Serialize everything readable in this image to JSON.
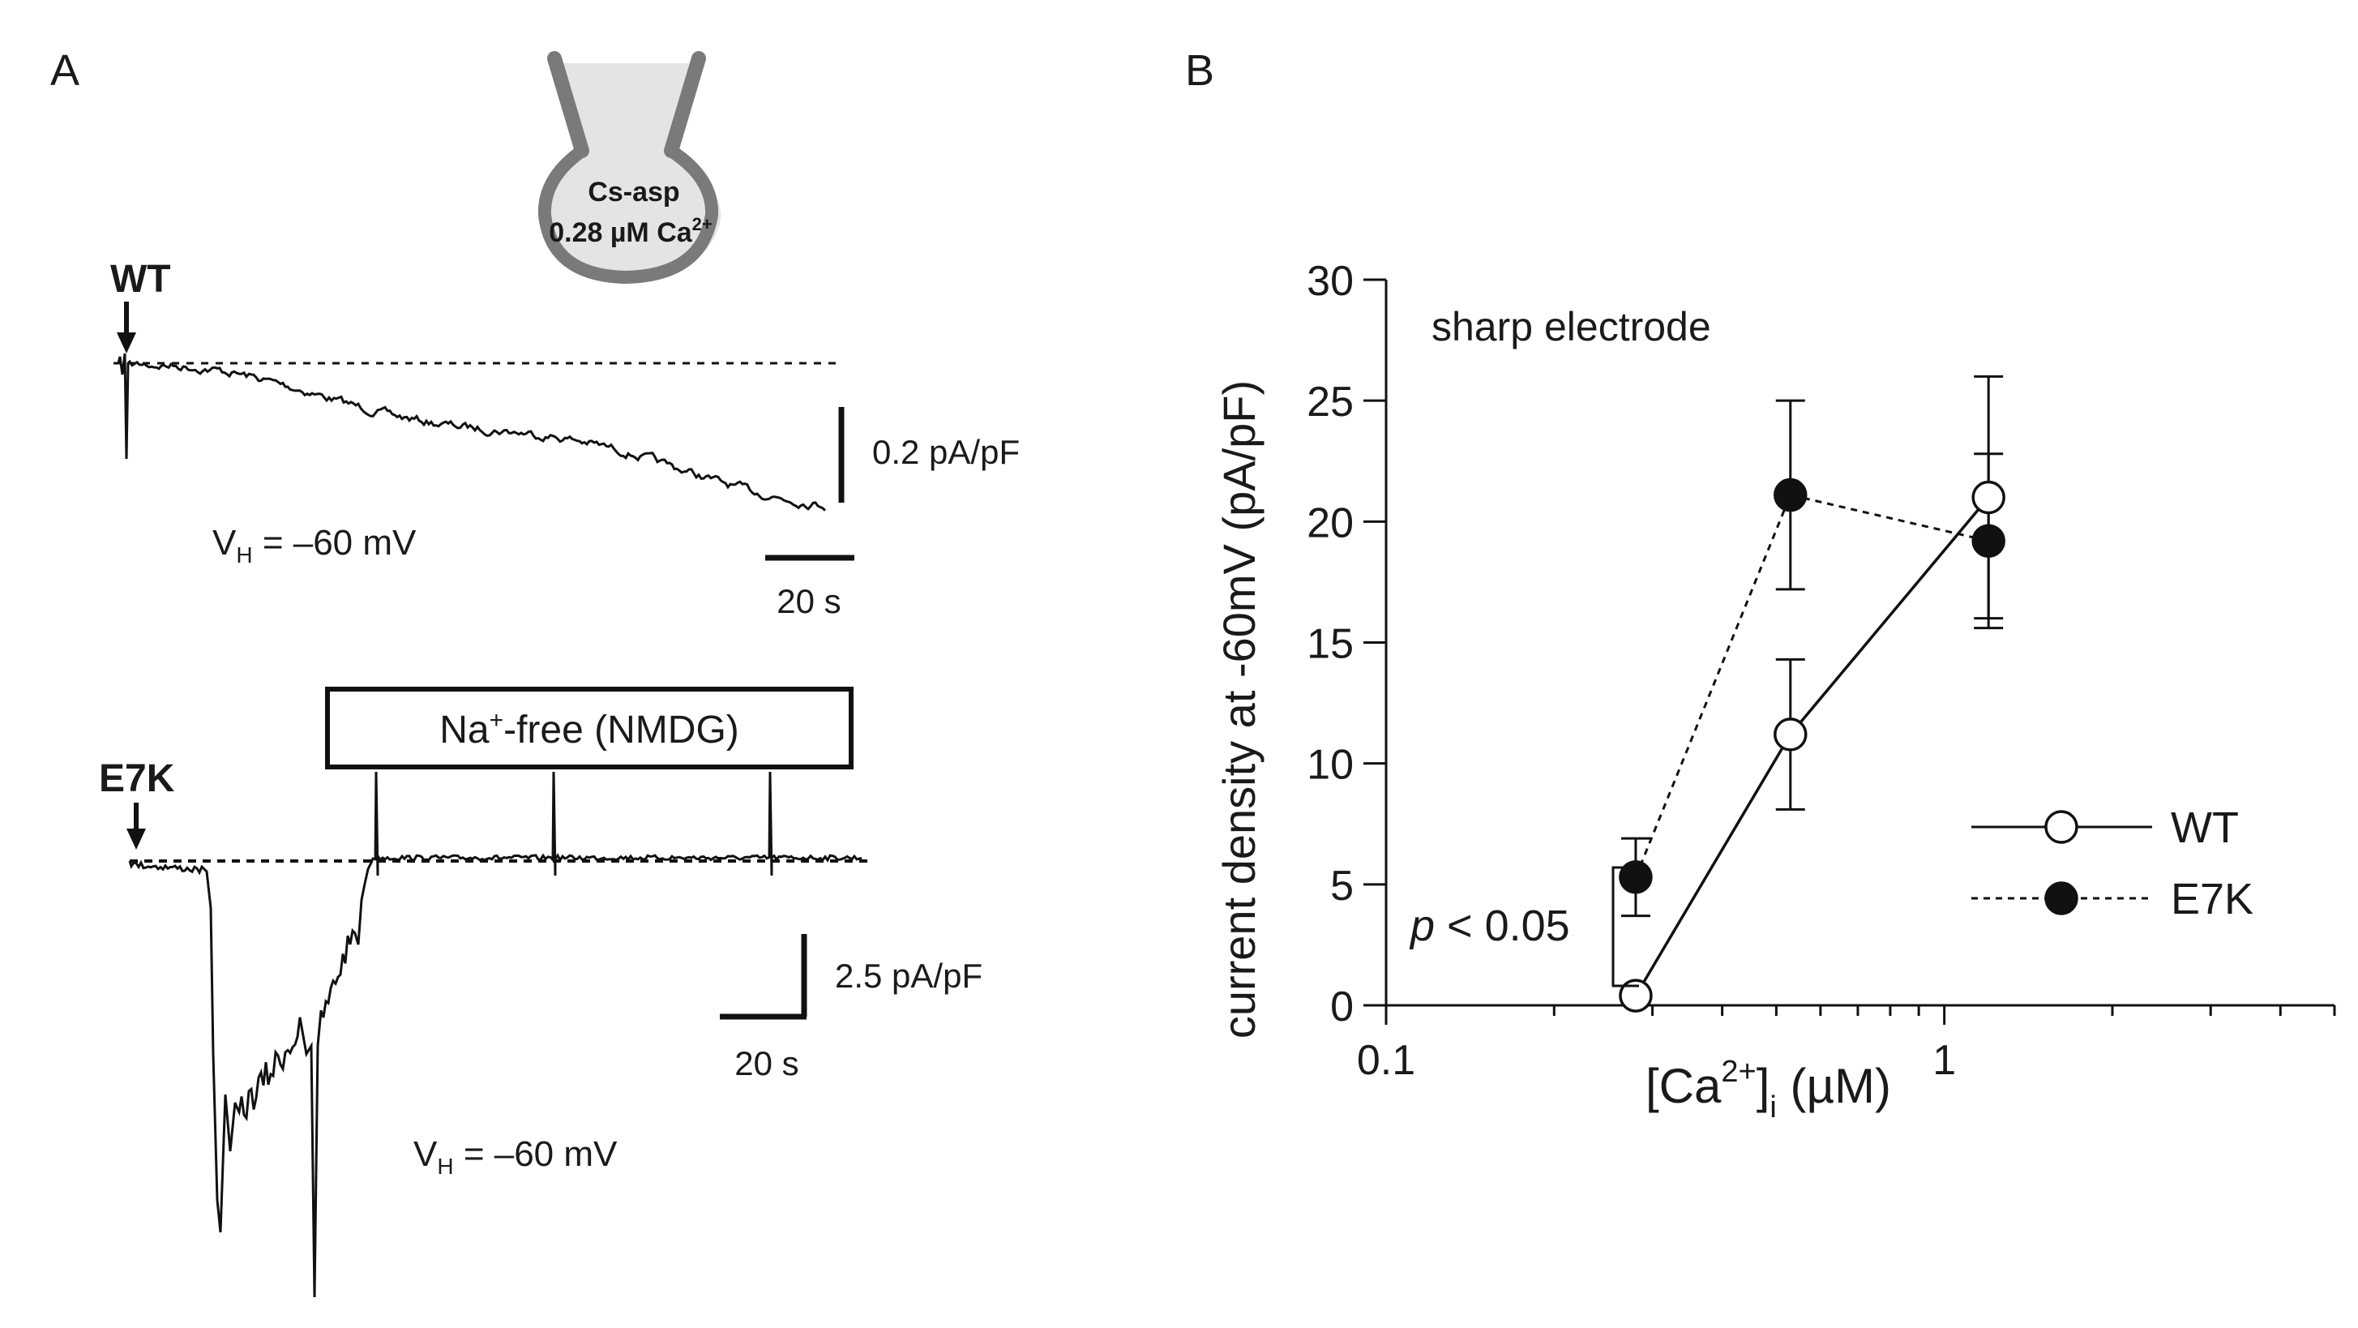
{
  "panel_a": {
    "label": "A",
    "pipette": {
      "line1": "Cs-asp",
      "line2_prefix": "0.28 µM Ca",
      "line2_sup": "2+"
    },
    "wt": {
      "label": "WT",
      "scale_y": "0.2 pA/pF",
      "scale_x": "20 s",
      "vh_main": "V",
      "vh_sub": "H",
      "vh_rest": " = –60 mV"
    },
    "e7k": {
      "label": "E7K",
      "box_prefix": "Na",
      "box_sup": "+",
      "box_rest": "-free (NMDG)",
      "scale_y": "2.5 pA/pF",
      "scale_x": "20 s",
      "vh_main": "V",
      "vh_sub": "H",
      "vh_rest": " = –60 mV"
    }
  },
  "panel_b": {
    "label": "B",
    "annotation": "sharp electrode",
    "significance_p": "p",
    "significance_rest": " < 0.05",
    "xlabel_pre": "[Ca",
    "xlabel_sup": "2+",
    "xlabel_post": "]",
    "xlabel_sub": "i",
    "xlabel_unit": " (µM)",
    "ylabel": "current density at -60mV (pA/pF)"
  },
  "chart_data": {
    "type": "scatter",
    "x_scale": "log",
    "xlim": [
      0.1,
      5
    ],
    "ylim": [
      0,
      30
    ],
    "x_ticks": [
      {
        "value": 0.1,
        "label": "0.1"
      },
      {
        "value": 1,
        "label": "1"
      }
    ],
    "y_ticks": [
      0,
      5,
      10,
      15,
      20,
      25,
      30
    ],
    "legend_position": "lower-right",
    "series": [
      {
        "name": "WT",
        "marker": "open-circle",
        "line": "solid",
        "x": [
          0.28,
          0.53,
          1.2
        ],
        "y": [
          0.4,
          11.2,
          21.0
        ],
        "err": [
          0.3,
          3.1,
          5.0
        ]
      },
      {
        "name": "E7K",
        "marker": "filled-circle",
        "line": "dashed",
        "x": [
          0.28,
          0.53,
          1.2
        ],
        "y": [
          5.3,
          21.1,
          19.2
        ],
        "err": [
          1.6,
          3.9,
          3.6
        ]
      }
    ]
  }
}
